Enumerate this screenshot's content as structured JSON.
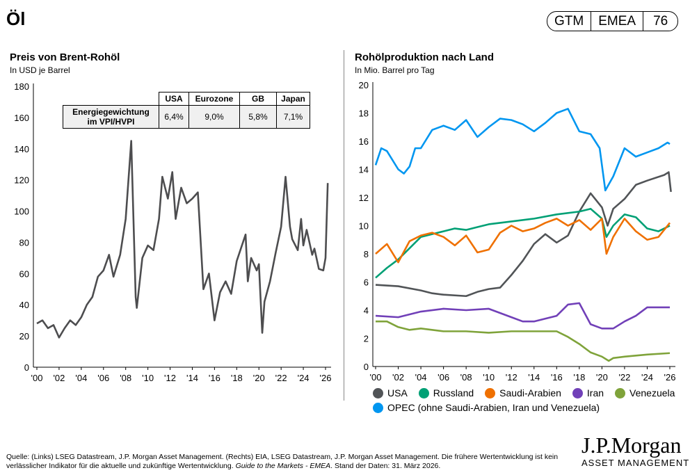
{
  "header": {
    "title": "Öl",
    "badge": [
      "GTM",
      "EMEA",
      "76"
    ]
  },
  "table": {
    "headers": [
      "",
      "USA",
      "Eurozone",
      "GB",
      "Japan"
    ],
    "row_label": "Energiegewichtung im VPI/HVPI",
    "values": [
      "6,4%",
      "9,0%",
      "5,8%",
      "7,1%"
    ]
  },
  "chart_data": [
    {
      "type": "line",
      "title": "Preis von Brent-Rohöl",
      "subtitle": "In USD je Barrel",
      "ylim": [
        0,
        180
      ],
      "yticks": [
        0,
        20,
        40,
        60,
        80,
        100,
        120,
        140,
        160,
        180
      ],
      "xlim": [
        2000,
        2026.3
      ],
      "xticks": [
        "'00",
        "'02",
        "'04",
        "'06",
        "'08",
        "'10",
        "'12",
        "'14",
        "'16",
        "'18",
        "'20",
        "'22",
        "'24",
        "'26"
      ],
      "grid": false,
      "series": [
        {
          "color": "#4d4d4f",
          "points": [
            [
              2000,
              28
            ],
            [
              2000.5,
              30
            ],
            [
              2001,
              25
            ],
            [
              2001.5,
              27
            ],
            [
              2002,
              19
            ],
            [
              2002.5,
              25
            ],
            [
              2003,
              30
            ],
            [
              2003.5,
              27
            ],
            [
              2004,
              32
            ],
            [
              2004.5,
              40
            ],
            [
              2005,
              45
            ],
            [
              2005.5,
              58
            ],
            [
              2006,
              62
            ],
            [
              2006.5,
              72
            ],
            [
              2006.9,
              58
            ],
            [
              2007.5,
              72
            ],
            [
              2008,
              95
            ],
            [
              2008.5,
              145
            ],
            [
              2008.9,
              45
            ],
            [
              2009,
              38
            ],
            [
              2009.5,
              70
            ],
            [
              2010,
              78
            ],
            [
              2010.5,
              75
            ],
            [
              2011,
              95
            ],
            [
              2011.3,
              122
            ],
            [
              2011.8,
              108
            ],
            [
              2012.2,
              125
            ],
            [
              2012.5,
              95
            ],
            [
              2013,
              115
            ],
            [
              2013.5,
              105
            ],
            [
              2014,
              108
            ],
            [
              2014.5,
              112
            ],
            [
              2015,
              50
            ],
            [
              2015.5,
              60
            ],
            [
              2016,
              30
            ],
            [
              2016.5,
              48
            ],
            [
              2017,
              55
            ],
            [
              2017.5,
              47
            ],
            [
              2018,
              68
            ],
            [
              2018.8,
              85
            ],
            [
              2019,
              55
            ],
            [
              2019.3,
              70
            ],
            [
              2019.8,
              62
            ],
            [
              2020,
              66
            ],
            [
              2020.3,
              22
            ],
            [
              2020.5,
              42
            ],
            [
              2021,
              55
            ],
            [
              2021.5,
              73
            ],
            [
              2022,
              90
            ],
            [
              2022.4,
              122
            ],
            [
              2022.8,
              90
            ],
            [
              2023,
              82
            ],
            [
              2023.5,
              75
            ],
            [
              2023.8,
              95
            ],
            [
              2024,
              78
            ],
            [
              2024.3,
              88
            ],
            [
              2024.8,
              72
            ],
            [
              2025,
              76
            ],
            [
              2025.4,
              63
            ],
            [
              2025.8,
              62
            ],
            [
              2026,
              70
            ],
            [
              2026.2,
              118
            ]
          ]
        }
      ]
    },
    {
      "type": "line",
      "title": "Rohölproduktion nach Land",
      "subtitle": "In Mio. Barrel pro Tag",
      "ylim": [
        0,
        20
      ],
      "yticks": [
        0,
        2,
        4,
        6,
        8,
        10,
        12,
        14,
        16,
        18,
        20
      ],
      "xlim": [
        2000,
        2026.3
      ],
      "xticks": [
        "'00",
        "'02",
        "'04",
        "'06",
        "'08",
        "'10",
        "'12",
        "'14",
        "'16",
        "'18",
        "'20",
        "'22",
        "'24",
        "'26"
      ],
      "grid": false,
      "legend": "bottom",
      "series": [
        {
          "name": "USA",
          "color": "#515457",
          "points": [
            [
              2000,
              5.8
            ],
            [
              2002,
              5.7
            ],
            [
              2004,
              5.4
            ],
            [
              2005,
              5.2
            ],
            [
              2006,
              5.1
            ],
            [
              2008,
              5.0
            ],
            [
              2009,
              5.3
            ],
            [
              2010,
              5.5
            ],
            [
              2011,
              5.6
            ],
            [
              2012,
              6.5
            ],
            [
              2013,
              7.5
            ],
            [
              2014,
              8.7
            ],
            [
              2015,
              9.4
            ],
            [
              2016,
              8.8
            ],
            [
              2017,
              9.3
            ],
            [
              2018,
              11
            ],
            [
              2019,
              12.3
            ],
            [
              2020,
              11.3
            ],
            [
              2020.5,
              10
            ],
            [
              2021,
              11.2
            ],
            [
              2022,
              11.9
            ],
            [
              2023,
              12.9
            ],
            [
              2024,
              13.2
            ],
            [
              2025.5,
              13.6
            ],
            [
              2025.9,
              13.8
            ],
            [
              2026.1,
              12.4
            ]
          ]
        },
        {
          "name": "Russland",
          "color": "#00a075",
          "points": [
            [
              2000,
              6.3
            ],
            [
              2001,
              7
            ],
            [
              2002,
              7.6
            ],
            [
              2003,
              8.4
            ],
            [
              2004,
              9.2
            ],
            [
              2005,
              9.4
            ],
            [
              2006,
              9.6
            ],
            [
              2007,
              9.8
            ],
            [
              2008,
              9.7
            ],
            [
              2009,
              9.9
            ],
            [
              2010,
              10.1
            ],
            [
              2012,
              10.3
            ],
            [
              2014,
              10.5
            ],
            [
              2016,
              10.8
            ],
            [
              2018,
              11
            ],
            [
              2019,
              11.2
            ],
            [
              2020,
              10.5
            ],
            [
              2020.4,
              9.2
            ],
            [
              2021,
              10
            ],
            [
              2022,
              10.8
            ],
            [
              2023,
              10.6
            ],
            [
              2024,
              9.8
            ],
            [
              2025,
              9.6
            ],
            [
              2026,
              10
            ]
          ]
        },
        {
          "name": "Saudi-Arabien",
          "color": "#ef7000",
          "points": [
            [
              2000,
              8
            ],
            [
              2001,
              8.7
            ],
            [
              2002,
              7.4
            ],
            [
              2003,
              8.9
            ],
            [
              2004,
              9.3
            ],
            [
              2005,
              9.5
            ],
            [
              2006,
              9.2
            ],
            [
              2007,
              8.6
            ],
            [
              2008,
              9.3
            ],
            [
              2009,
              8.1
            ],
            [
              2010,
              8.3
            ],
            [
              2011,
              9.5
            ],
            [
              2012,
              10
            ],
            [
              2013,
              9.6
            ],
            [
              2014,
              9.8
            ],
            [
              2015,
              10.2
            ],
            [
              2016,
              10.5
            ],
            [
              2017,
              10
            ],
            [
              2018,
              10.4
            ],
            [
              2019,
              9.7
            ],
            [
              2020,
              10.5
            ],
            [
              2020.4,
              8
            ],
            [
              2021,
              9.2
            ],
            [
              2022,
              10.5
            ],
            [
              2023,
              9.6
            ],
            [
              2024,
              9
            ],
            [
              2025,
              9.2
            ],
            [
              2026,
              10.2
            ]
          ]
        },
        {
          "name": "Iran",
          "color": "#7140b8",
          "points": [
            [
              2000,
              3.6
            ],
            [
              2002,
              3.5
            ],
            [
              2004,
              3.9
            ],
            [
              2006,
              4.1
            ],
            [
              2008,
              4.0
            ],
            [
              2010,
              4.1
            ],
            [
              2012,
              3.5
            ],
            [
              2013,
              3.2
            ],
            [
              2014,
              3.2
            ],
            [
              2016,
              3.6
            ],
            [
              2017,
              4.4
            ],
            [
              2018,
              4.5
            ],
            [
              2019,
              3.0
            ],
            [
              2020,
              2.7
            ],
            [
              2021,
              2.7
            ],
            [
              2022,
              3.2
            ],
            [
              2023,
              3.6
            ],
            [
              2024,
              4.2
            ],
            [
              2026,
              4.2
            ]
          ]
        },
        {
          "name": "Venezuela",
          "color": "#7fa33a",
          "points": [
            [
              2000,
              3.2
            ],
            [
              2001,
              3.2
            ],
            [
              2002,
              2.8
            ],
            [
              2003,
              2.6
            ],
            [
              2004,
              2.7
            ],
            [
              2006,
              2.5
            ],
            [
              2008,
              2.5
            ],
            [
              2010,
              2.4
            ],
            [
              2012,
              2.5
            ],
            [
              2014,
              2.5
            ],
            [
              2016,
              2.5
            ],
            [
              2017,
              2.1
            ],
            [
              2018,
              1.6
            ],
            [
              2019,
              1.0
            ],
            [
              2020,
              0.7
            ],
            [
              2020.6,
              0.4
            ],
            [
              2021,
              0.6
            ],
            [
              2022,
              0.7
            ],
            [
              2024,
              0.85
            ],
            [
              2026,
              0.95
            ]
          ]
        },
        {
          "name": "OPEC (ohne Saudi-Arabien, Iran und Venezuela)",
          "color": "#0096f0",
          "points": [
            [
              2000,
              14.3
            ],
            [
              2000.5,
              15.5
            ],
            [
              2001,
              15.3
            ],
            [
              2002,
              14
            ],
            [
              2002.5,
              13.7
            ],
            [
              2003,
              14.2
            ],
            [
              2003.5,
              15.5
            ],
            [
              2004,
              15.5
            ],
            [
              2005,
              16.8
            ],
            [
              2006,
              17.1
            ],
            [
              2007,
              16.8
            ],
            [
              2008,
              17.5
            ],
            [
              2009,
              16.3
            ],
            [
              2010,
              17
            ],
            [
              2011,
              17.6
            ],
            [
              2012,
              17.5
            ],
            [
              2013,
              17.2
            ],
            [
              2014,
              16.7
            ],
            [
              2015,
              17.3
            ],
            [
              2016,
              18
            ],
            [
              2017,
              18.3
            ],
            [
              2018,
              16.7
            ],
            [
              2019,
              16.5
            ],
            [
              2019.8,
              15.5
            ],
            [
              2020.3,
              12.5
            ],
            [
              2021,
              13.5
            ],
            [
              2022,
              15.5
            ],
            [
              2023,
              14.9
            ],
            [
              2024,
              15.2
            ],
            [
              2025,
              15.5
            ],
            [
              2025.8,
              15.9
            ],
            [
              2026,
              15.8
            ]
          ]
        }
      ]
    }
  ],
  "footer": {
    "source": "Quelle: (Links) LSEG Datastream, J.P. Morgan Asset Management. (Rechts) EIA, LSEG Datastream, J.P. Morgan Asset Management. Die frühere Wertentwicklung ist kein verlässlicher Indikator für die aktuelle und zukünftige Wertentwicklung.",
    "guide": "Guide to the Markets - EMEA",
    "date": ". Stand der Daten: 31. März 2026."
  },
  "logo": {
    "line1": "J.P.Morgan",
    "line2": "ASSET MANAGEMENT"
  }
}
